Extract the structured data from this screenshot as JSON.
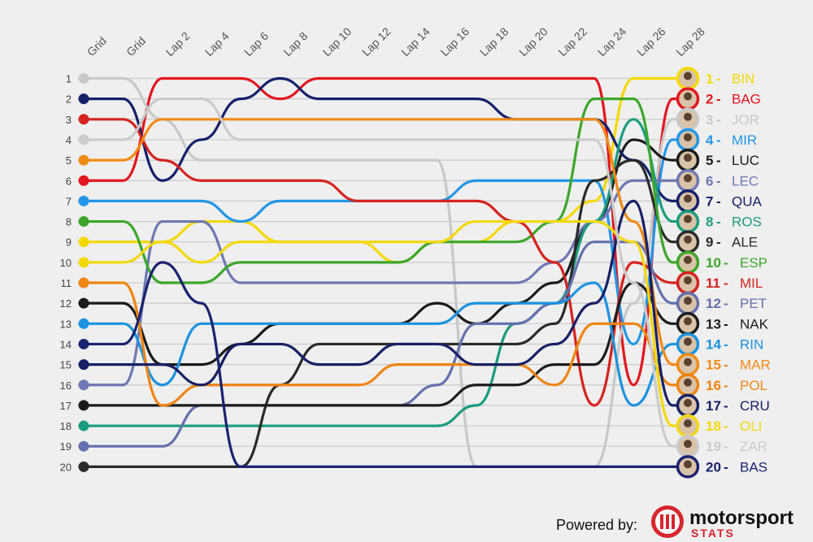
{
  "chart_data": {
    "type": "line",
    "title": "",
    "xlabel": "",
    "ylabel": "",
    "x": [
      "Grid",
      "Grid",
      "Lap 2",
      "Lap 4",
      "Lap 6",
      "Lap 8",
      "Lap 10",
      "Lap 12",
      "Lap 14",
      "Lap 16",
      "Lap 18",
      "Lap 20",
      "Lap 22",
      "Lap 24",
      "Lap 26",
      "Lap 28"
    ],
    "y_ticks": [
      "1",
      "2",
      "3",
      "4",
      "5",
      "6",
      "7",
      "8",
      "9",
      "10",
      "11",
      "12",
      "13",
      "14",
      "15",
      "16",
      "17",
      "18",
      "19",
      "20"
    ],
    "ylim": [
      1,
      20
    ],
    "y_inverted": true,
    "grid": true,
    "series": [
      {
        "name": "BIN",
        "color": "#f5d800",
        "final": 1,
        "values": [
          9,
          9,
          9,
          8,
          8,
          9,
          9,
          9,
          10,
          9,
          9,
          8,
          8,
          7,
          1,
          1
        ]
      },
      {
        "name": "BAG",
        "color": "#e2161e",
        "final": 2,
        "values": [
          6,
          6,
          1,
          1,
          1,
          2,
          1,
          1,
          1,
          1,
          1,
          1,
          1,
          1,
          16,
          2
        ]
      },
      {
        "name": "JOR",
        "color": "#c8c8c8",
        "final": 3,
        "values": [
          1,
          1,
          3,
          5,
          5,
          5,
          5,
          5,
          5,
          5,
          20,
          20,
          20,
          20,
          12,
          3
        ]
      },
      {
        "name": "MIR",
        "color": "#2196e8",
        "final": 4,
        "values": [
          7,
          7,
          7,
          7,
          8,
          7,
          7,
          7,
          7,
          7,
          6,
          6,
          6,
          6,
          14,
          4
        ]
      },
      {
        "name": "LUC",
        "color": "#1a1a1a",
        "final": 5,
        "values": [
          12,
          12,
          15,
          15,
          14,
          13,
          13,
          13,
          13,
          12,
          13,
          12,
          11,
          8,
          4,
          5
        ]
      },
      {
        "name": "LEC",
        "color": "#6d78b3",
        "final": 6,
        "values": [
          16,
          16,
          8,
          8,
          11,
          11,
          11,
          11,
          11,
          11,
          11,
          11,
          10,
          8,
          6,
          6
        ]
      },
      {
        "name": "QUA",
        "color": "#15206b",
        "final": 7,
        "values": [
          2,
          2,
          6,
          4,
          2,
          1,
          2,
          2,
          2,
          2,
          2,
          3,
          3,
          3,
          5,
          7
        ]
      },
      {
        "name": "ROS",
        "color": "#1a9c7e",
        "final": 8,
        "values": [
          18,
          18,
          18,
          18,
          18,
          18,
          18,
          18,
          18,
          18,
          17,
          13,
          12,
          8,
          3,
          8
        ]
      },
      {
        "name": "ALE",
        "color": "#2a2a2a",
        "final": 9,
        "values": [
          20,
          20,
          20,
          20,
          20,
          16,
          14,
          14,
          14,
          14,
          14,
          14,
          13,
          6,
          5,
          9
        ]
      },
      {
        "name": "ESP",
        "color": "#3ba62a",
        "final": 10,
        "values": [
          8,
          8,
          11,
          11,
          10,
          10,
          10,
          10,
          10,
          9,
          9,
          9,
          8,
          2,
          2,
          10
        ]
      },
      {
        "name": "MIL",
        "color": "#d5231e",
        "final": 11,
        "values": [
          3,
          3,
          5,
          6,
          6,
          6,
          6,
          7,
          7,
          7,
          7,
          8,
          10,
          17,
          10,
          11
        ]
      },
      {
        "name": "PET",
        "color": "#6470ad",
        "final": 12,
        "values": [
          19,
          19,
          19,
          17,
          17,
          17,
          17,
          17,
          17,
          16,
          13,
          13,
          12,
          9,
          9,
          12
        ]
      },
      {
        "name": "NAK",
        "color": "#1c1c1c",
        "final": 13,
        "values": [
          17,
          17,
          17,
          17,
          17,
          17,
          17,
          17,
          17,
          17,
          16,
          16,
          15,
          15,
          11,
          13
        ]
      },
      {
        "name": "RIN",
        "color": "#1b92df",
        "final": 14,
        "values": [
          13,
          13,
          16,
          13,
          13,
          13,
          13,
          13,
          13,
          13,
          12,
          12,
          12,
          11,
          17,
          14
        ]
      },
      {
        "name": "MAR",
        "color": "#f18a15",
        "final": 15,
        "values": [
          5,
          5,
          3,
          3,
          3,
          3,
          3,
          3,
          3,
          3,
          3,
          3,
          3,
          3,
          8,
          15
        ]
      },
      {
        "name": "POL",
        "color": "#ee8412",
        "final": 16,
        "values": [
          11,
          11,
          17,
          16,
          16,
          16,
          16,
          16,
          15,
          15,
          15,
          15,
          16,
          13,
          13,
          16
        ]
      },
      {
        "name": "CRU",
        "color": "#172066",
        "final": 17,
        "values": [
          15,
          15,
          15,
          16,
          14,
          14,
          15,
          15,
          14,
          14,
          15,
          15,
          14,
          12,
          7,
          17
        ]
      },
      {
        "name": "OLI",
        "color": "#f3d80c",
        "final": 18,
        "values": [
          10,
          10,
          9,
          10,
          9,
          9,
          9,
          9,
          9,
          9,
          8,
          8,
          8,
          8,
          9,
          18
        ]
      },
      {
        "name": "ZAR",
        "color": "#cbcbcb",
        "final": 19,
        "values": [
          4,
          4,
          2,
          2,
          4,
          4,
          4,
          4,
          4,
          4,
          4,
          4,
          4,
          4,
          11,
          19
        ]
      },
      {
        "name": "BAS",
        "color": "#1a2370",
        "final": 20,
        "values": [
          14,
          14,
          10,
          12,
          20,
          20,
          20,
          20,
          20,
          20,
          20,
          20,
          20,
          20,
          20,
          20
        ]
      }
    ]
  },
  "footer": {
    "powered_by": "Powered by:",
    "brand_name": "motorsport",
    "brand_sub": "STATS"
  }
}
